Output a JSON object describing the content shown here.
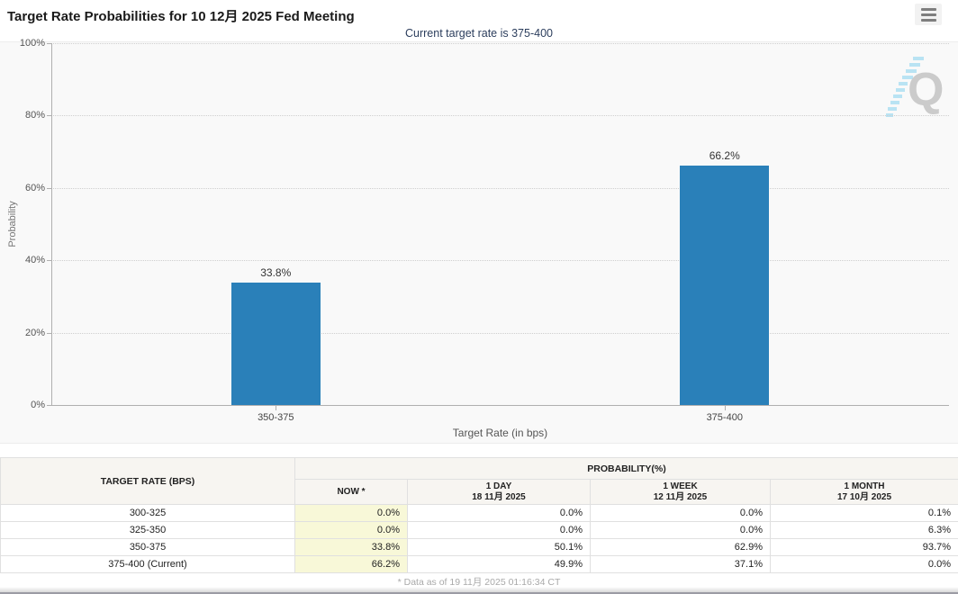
{
  "header": {
    "title": "Target Rate Probabilities for 10 12月 2025 Fed Meeting"
  },
  "subtitle": "Current target rate is 375-400",
  "chart_data": {
    "type": "bar",
    "title": "Target Rate Probabilities for 10 12月 2025 Fed Meeting",
    "subtitle": "Current target rate is 375-400",
    "categories": [
      "350-375",
      "375-400"
    ],
    "values": [
      33.8,
      66.2
    ],
    "value_labels": [
      "33.8%",
      "66.2%"
    ],
    "xlabel": "Target Rate (in bps)",
    "ylabel": "Probability",
    "ylim": [
      0,
      100
    ],
    "ytick_step": 20,
    "yticks": [
      "0%",
      "20%",
      "40%",
      "60%",
      "80%",
      "100%"
    ],
    "grid": "horizontal-dotted",
    "legend": "none",
    "watermark": "Q"
  },
  "colors": {
    "bar": "#2a80b9",
    "now_column_bg": "#f8f8d8",
    "table_header_bg": "#f7f5f1",
    "subtitle_text": "#2c3e5d"
  },
  "table": {
    "col1_header": "TARGET RATE (BPS)",
    "group_header": "PROBABILITY(%)",
    "columns": [
      {
        "label": "NOW *",
        "sub": ""
      },
      {
        "label": "1 DAY",
        "sub": "18 11月 2025"
      },
      {
        "label": "1 WEEK",
        "sub": "12 11月 2025"
      },
      {
        "label": "1 MONTH",
        "sub": "17 10月 2025"
      }
    ],
    "rows": [
      {
        "rate": "300-325",
        "now": "0.0%",
        "day": "0.0%",
        "week": "0.0%",
        "month": "0.1%"
      },
      {
        "rate": "325-350",
        "now": "0.0%",
        "day": "0.0%",
        "week": "0.0%",
        "month": "6.3%"
      },
      {
        "rate": "350-375",
        "now": "33.8%",
        "day": "50.1%",
        "week": "62.9%",
        "month": "93.7%"
      },
      {
        "rate": "375-400 (Current)",
        "now": "66.2%",
        "day": "49.9%",
        "week": "37.1%",
        "month": "0.0%"
      }
    ]
  },
  "footer": {
    "note": "* Data as of 19 11月 2025 01:16:34 CT"
  }
}
